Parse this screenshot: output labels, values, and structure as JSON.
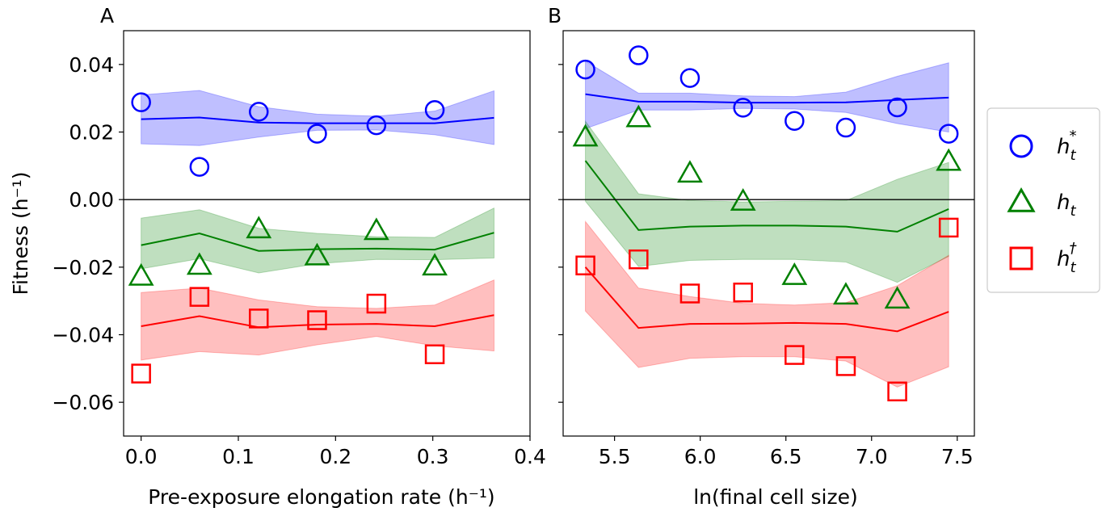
{
  "figure": {
    "ylabel": "Fitness (h⁻¹)",
    "yticks": [
      "0.04",
      "0.02",
      "0.00",
      "−0.02",
      "−0.04",
      "−0.06"
    ],
    "legend": {
      "placement": "right",
      "entries": [
        {
          "label": "h",
          "sub": "t",
          "sup": "*",
          "marker": "circle",
          "color": "#0000ff"
        },
        {
          "label": "h",
          "sub": "t",
          "sup": "",
          "marker": "triangle",
          "color": "#008000"
        },
        {
          "label": "h",
          "sub": "t",
          "sup": "†",
          "marker": "square",
          "color": "#ff0000"
        }
      ]
    }
  },
  "colors": {
    "blue": "#0000ff",
    "green": "#008000",
    "red": "#ff0000",
    "blue_fill": "#0000ff",
    "green_fill": "#008000",
    "red_fill": "#ff0000"
  },
  "chart_data": [
    {
      "type": "scatter",
      "panel": "A",
      "title": "",
      "xlabel": "Pre-exposure elongation rate (h⁻¹)",
      "ylabel": "Fitness (h⁻¹)",
      "xlim": [
        -0.018,
        0.4
      ],
      "ylim": [
        -0.07,
        0.05
      ],
      "xticks": [
        "0.0",
        "0.1",
        "0.2",
        "0.3",
        "0.4"
      ],
      "xtick_values": [
        0.0,
        0.1,
        0.2,
        0.3,
        0.4
      ],
      "hline_y": 0,
      "series": [
        {
          "key": "blue",
          "marker": "circle",
          "points": {
            "x": [
              0.0,
              0.06,
              0.121,
              0.181,
              0.242,
              0.302
            ],
            "y": [
              0.0288,
              0.0097,
              0.026,
              0.0195,
              0.022,
              0.0265
            ]
          },
          "band": {
            "x": [
              0.0,
              0.06,
              0.121,
              0.181,
              0.242,
              0.302,
              0.363
            ],
            "mean": [
              0.0238,
              0.0243,
              0.0228,
              0.0226,
              0.0226,
              0.0226,
              0.0242
            ],
            "lower": [
              0.0165,
              0.016,
              0.0185,
              0.0205,
              0.0206,
              0.0192,
              0.0163
            ],
            "upper": [
              0.031,
              0.0323,
              0.0275,
              0.0253,
              0.0247,
              0.0262,
              0.0322
            ]
          }
        },
        {
          "key": "green",
          "marker": "triangle",
          "points": {
            "x": [
              0.0,
              0.06,
              0.121,
              0.181,
              0.242,
              0.302
            ],
            "y": [
              -0.0227,
              -0.0195,
              -0.0087,
              -0.0167,
              -0.0092,
              -0.0197
            ]
          },
          "band": {
            "x": [
              0.0,
              0.06,
              0.121,
              0.181,
              0.242,
              0.302,
              0.363
            ],
            "mean": [
              -0.0135,
              -0.01,
              -0.0152,
              -0.0147,
              -0.0145,
              -0.0148,
              -0.0098
            ],
            "lower": [
              -0.0205,
              -0.0175,
              -0.0217,
              -0.019,
              -0.0177,
              -0.0178,
              -0.0173
            ],
            "upper": [
              -0.0055,
              -0.003,
              -0.0085,
              -0.01,
              -0.011,
              -0.0112,
              -0.0025
            ]
          }
        },
        {
          "key": "red",
          "marker": "square",
          "points": {
            "x": [
              0.0,
              0.06,
              0.121,
              0.181,
              0.242,
              0.302
            ],
            "y": [
              -0.0515,
              -0.0288,
              -0.0352,
              -0.0357,
              -0.0308,
              -0.0458
            ]
          },
          "band": {
            "x": [
              0.0,
              0.06,
              0.121,
              0.181,
              0.242,
              0.302,
              0.363
            ],
            "mean": [
              -0.0375,
              -0.0345,
              -0.0378,
              -0.037,
              -0.0368,
              -0.0375,
              -0.0342
            ],
            "lower": [
              -0.0475,
              -0.045,
              -0.046,
              -0.043,
              -0.0405,
              -0.0433,
              -0.0448
            ],
            "upper": [
              -0.0275,
              -0.0262,
              -0.0297,
              -0.0317,
              -0.0322,
              -0.0312,
              -0.0238
            ]
          }
        }
      ]
    },
    {
      "type": "scatter",
      "panel": "B",
      "title": "",
      "xlabel": "ln(final cell size)",
      "ylabel": "",
      "xlim": [
        5.2,
        7.6
      ],
      "ylim": [
        -0.07,
        0.05
      ],
      "xticks": [
        "5.5",
        "6.0",
        "6.5",
        "7.0",
        "7.5"
      ],
      "xtick_values": [
        5.5,
        6.0,
        6.5,
        7.0,
        7.5
      ],
      "hline_y": 0,
      "series": [
        {
          "key": "blue",
          "marker": "circle",
          "points": {
            "x": [
              5.33,
              5.64,
              5.94,
              6.25,
              6.55,
              6.85,
              7.15,
              7.45
            ],
            "y": [
              0.0385,
              0.0427,
              0.036,
              0.0272,
              0.0233,
              0.0213,
              0.0273,
              0.0195
            ]
          },
          "band": {
            "x": [
              5.33,
              5.64,
              5.94,
              6.25,
              6.55,
              6.85,
              7.15,
              7.45
            ],
            "mean": [
              0.0312,
              0.029,
              0.029,
              0.0287,
              0.0287,
              0.0288,
              0.0295,
              0.0302
            ],
            "lower": [
              0.021,
              0.0265,
              0.0265,
              0.027,
              0.0268,
              0.0258,
              0.0225,
              0.02
            ],
            "upper": [
              0.041,
              0.0315,
              0.0315,
              0.0307,
              0.0305,
              0.0318,
              0.0365,
              0.0405
            ]
          }
        },
        {
          "key": "green",
          "marker": "triangle",
          "points": {
            "x": [
              5.33,
              5.64,
              5.94,
              6.25,
              6.55,
              6.85,
              7.15,
              7.45
            ],
            "y": [
              0.0185,
              0.0242,
              0.0078,
              -0.0005,
              -0.0225,
              -0.0283,
              -0.0295,
              0.0113
            ]
          },
          "band": {
            "x": [
              5.33,
              5.64,
              5.94,
              6.25,
              6.55,
              6.85,
              7.15,
              7.45
            ],
            "mean": [
              0.0115,
              -0.009,
              -0.008,
              -0.0077,
              -0.0077,
              -0.008,
              -0.0095,
              -0.0028
            ],
            "lower": [
              -0.0005,
              -0.0198,
              -0.018,
              -0.0177,
              -0.0177,
              -0.0185,
              -0.0245,
              -0.0168
            ],
            "upper": [
              0.0232,
              0.0017,
              -0.0003,
              -0.0007,
              -0.0005,
              -0.0003,
              0.006,
              0.011
            ]
          }
        },
        {
          "key": "red",
          "marker": "square",
          "points": {
            "x": [
              5.33,
              5.64,
              5.94,
              6.25,
              6.55,
              6.85,
              7.15,
              7.45
            ],
            "y": [
              -0.0195,
              -0.0177,
              -0.0278,
              -0.0275,
              -0.046,
              -0.0493,
              -0.0568,
              -0.0083
            ]
          },
          "band": {
            "x": [
              5.33,
              5.64,
              5.94,
              6.25,
              6.55,
              6.85,
              7.15,
              7.45
            ],
            "mean": [
              -0.02,
              -0.038,
              -0.0368,
              -0.0367,
              -0.0365,
              -0.0368,
              -0.039,
              -0.0332
            ],
            "lower": [
              -0.033,
              -0.0497,
              -0.047,
              -0.0465,
              -0.0465,
              -0.0478,
              -0.0555,
              -0.0495
            ],
            "upper": [
              -0.0065,
              -0.0262,
              -0.0287,
              -0.0307,
              -0.0312,
              -0.0305,
              -0.0255,
              -0.0165
            ]
          }
        }
      ]
    }
  ]
}
